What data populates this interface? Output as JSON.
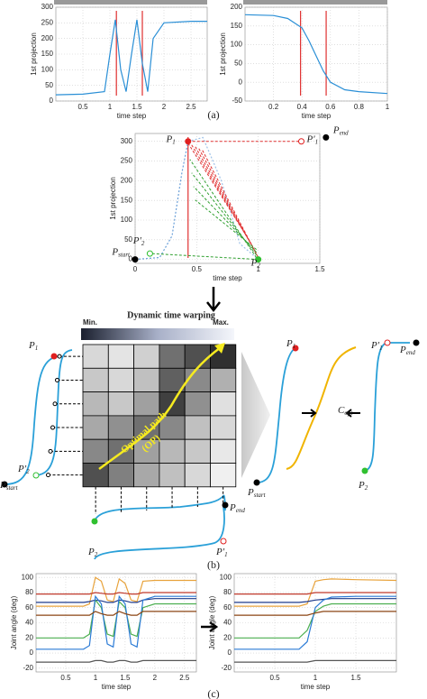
{
  "chart_data": [
    {
      "type": "line",
      "ylabel": "1st projection",
      "xlabel": "time step",
      "xlim": [
        0,
        2.8
      ],
      "ylim": [
        0,
        300
      ],
      "xticks": [
        0.5,
        1,
        1.5,
        2,
        2.5
      ],
      "yticks": [
        0,
        50,
        100,
        150,
        200,
        250,
        300
      ],
      "grid": true,
      "series": [
        {
          "color": "#2a8fd6",
          "x": [
            0,
            0.5,
            0.9,
            1.0,
            1.1,
            1.2,
            1.3,
            1.4,
            1.5,
            1.6,
            1.7,
            1.8,
            2.0,
            2.5,
            2.8
          ],
          "values": [
            20,
            22,
            30,
            150,
            260,
            100,
            30,
            150,
            260,
            120,
            30,
            200,
            250,
            255,
            255
          ]
        }
      ],
      "vlines": {
        "color": "#e03030",
        "x": [
          1.12,
          1.6
        ]
      }
    },
    {
      "type": "line",
      "ylabel": "1st projection",
      "xlabel": "time step",
      "xlim": [
        0,
        1
      ],
      "ylim": [
        -50,
        200
      ],
      "xticks": [
        0.2,
        0.4,
        0.6,
        0.8,
        1
      ],
      "yticks": [
        -50,
        0,
        50,
        100,
        150,
        200
      ],
      "grid": true,
      "series": [
        {
          "color": "#2a8fd6",
          "x": [
            0,
            0.2,
            0.3,
            0.4,
            0.45,
            0.5,
            0.55,
            0.6,
            0.7,
            0.8,
            1
          ],
          "values": [
            180,
            178,
            170,
            145,
            110,
            70,
            30,
            0,
            -20,
            -25,
            -30
          ]
        }
      ],
      "vlines": {
        "color": "#e03030",
        "x": [
          0.39,
          0.57
        ]
      }
    },
    {
      "type": "line",
      "ylabel": "1st projection",
      "xlabel": "time step",
      "xlim": [
        0,
        1.5
      ],
      "ylim": [
        -10,
        320
      ],
      "xticks": [
        0,
        0.5,
        1,
        1.5
      ],
      "yticks": [
        0,
        50,
        100,
        150,
        200,
        250,
        300
      ],
      "grid": true,
      "series": [
        {
          "color": "#6a9fd8",
          "dash": true,
          "x": [
            0,
            0.2,
            0.3,
            0.38,
            0.43
          ],
          "values": [
            0,
            5,
            60,
            220,
            300
          ]
        },
        {
          "color": "#9cc0e8",
          "dash": true,
          "x": [
            0.43,
            0.55,
            0.7,
            0.85,
            1.0
          ],
          "values": [
            300,
            310,
            200,
            40,
            0
          ]
        }
      ],
      "vlines": {
        "color": "#e03030",
        "x": [
          0.43
        ]
      },
      "points": [
        {
          "base": "P",
          "sub": "1",
          "x": 0.43,
          "y": 300,
          "color": "#e02020"
        },
        {
          "base": "P′",
          "sub": "1",
          "x": 1.35,
          "y": 300,
          "color": "#e02020",
          "hollow": true
        },
        {
          "base": "P",
          "sub": "end",
          "x": 1.55,
          "y": 310,
          "color": "#000000"
        },
        {
          "base": "P",
          "sub": "start",
          "x": 0,
          "y": 0,
          "color": "#000000"
        },
        {
          "base": "P",
          "sub": "2",
          "x": 1.0,
          "y": 0,
          "color": "#30c030"
        },
        {
          "base": "P′",
          "sub": "2",
          "x": 0.12,
          "y": 15,
          "color": "#30c030",
          "hollow": true
        }
      ]
    },
    {
      "type": "line",
      "ylabel": "Joint angle (deg)",
      "xlabel": "time step",
      "xlim": [
        0,
        2.7
      ],
      "ylim": [
        -25,
        105
      ],
      "xticks": [
        0.5,
        1,
        1.5,
        2,
        2.5
      ],
      "yticks": [
        -20,
        0,
        20,
        40,
        60,
        80,
        100
      ],
      "grid": true,
      "x": [
        0,
        0.8,
        0.9,
        1.0,
        1.1,
        1.2,
        1.3,
        1.4,
        1.5,
        1.6,
        1.7,
        1.8,
        2.0,
        2.7
      ],
      "series": [
        {
          "color": "#e8a33c",
          "values": [
            62,
            62,
            65,
            100,
            95,
            70,
            68,
            98,
            92,
            70,
            68,
            95,
            96,
            96
          ]
        },
        {
          "color": "#c0392b",
          "values": [
            78,
            78,
            78,
            80,
            79,
            78,
            78,
            80,
            79,
            78,
            78,
            80,
            80,
            80
          ]
        },
        {
          "color": "#1f3b8c",
          "values": [
            67,
            67,
            68,
            70,
            69,
            67,
            67,
            70,
            69,
            67,
            67,
            70,
            72,
            72
          ]
        },
        {
          "color": "#4caf50",
          "values": [
            20,
            20,
            25,
            70,
            60,
            25,
            22,
            68,
            60,
            25,
            22,
            60,
            65,
            65
          ]
        },
        {
          "color": "#2b7bd6",
          "values": [
            5,
            5,
            10,
            75,
            65,
            12,
            8,
            75,
            65,
            12,
            8,
            70,
            75,
            75
          ]
        },
        {
          "color": "#555555",
          "values": [
            -12,
            -12,
            -12,
            -10,
            -10,
            -12,
            -12,
            -10,
            -10,
            -12,
            -12,
            -10,
            -10,
            -10
          ]
        },
        {
          "color": "#8b4513",
          "values": [
            50,
            50,
            50,
            55,
            52,
            50,
            50,
            55,
            52,
            50,
            50,
            55,
            55,
            55
          ]
        }
      ]
    },
    {
      "type": "line",
      "ylabel": "Joint angle (deg)",
      "xlabel": "time step",
      "xlim": [
        0,
        2.0
      ],
      "ylim": [
        -25,
        105
      ],
      "xticks": [
        0.5,
        1,
        1.5
      ],
      "yticks": [
        -20,
        0,
        20,
        40,
        60,
        80,
        100
      ],
      "grid": true,
      "x": [
        0,
        0.8,
        0.9,
        1.0,
        1.1,
        1.2,
        1.5,
        2.0
      ],
      "series": [
        {
          "color": "#e8a33c",
          "values": [
            62,
            62,
            65,
            95,
            97,
            98,
            97,
            96
          ]
        },
        {
          "color": "#c0392b",
          "values": [
            78,
            78,
            78,
            80,
            80,
            80,
            80,
            80
          ]
        },
        {
          "color": "#1f3b8c",
          "values": [
            67,
            67,
            68,
            70,
            71,
            72,
            72,
            72
          ]
        },
        {
          "color": "#4caf50",
          "values": [
            20,
            20,
            30,
            55,
            62,
            65,
            65,
            65
          ]
        },
        {
          "color": "#2b7bd6",
          "values": [
            5,
            5,
            15,
            60,
            70,
            74,
            75,
            75
          ]
        },
        {
          "color": "#555555",
          "values": [
            -12,
            -12,
            -12,
            -10,
            -10,
            -10,
            -10,
            -10
          ]
        },
        {
          "color": "#8b4513",
          "values": [
            50,
            50,
            50,
            53,
            55,
            55,
            55,
            55
          ]
        }
      ]
    }
  ],
  "figure": {
    "label_a": "(a)",
    "label_b": "(b)",
    "label_c": "(c)",
    "dtw_title": "Dynamic time warping",
    "min": "Min.",
    "max": "Max.",
    "optimal_path": "Optimal path",
    "optimal_path_abbr": "(OP)",
    "b_labels": [
      {
        "base": "P",
        "sub": "1"
      },
      {
        "base": "P′",
        "sub": "2"
      },
      {
        "base": "P",
        "sub": "start"
      },
      {
        "base": "P",
        "sub": "end"
      },
      {
        "base": "P",
        "sub": "2"
      },
      {
        "base": "P′",
        "sub": "1"
      },
      {
        "base": "P",
        "sub": "1"
      },
      {
        "base": "P′",
        "sub": "1"
      },
      {
        "base": "P",
        "sub": "end"
      },
      {
        "base": "C",
        "sub": "opt"
      },
      {
        "base": "P",
        "sub": "start"
      },
      {
        "base": "P",
        "sub": "2"
      }
    ]
  }
}
